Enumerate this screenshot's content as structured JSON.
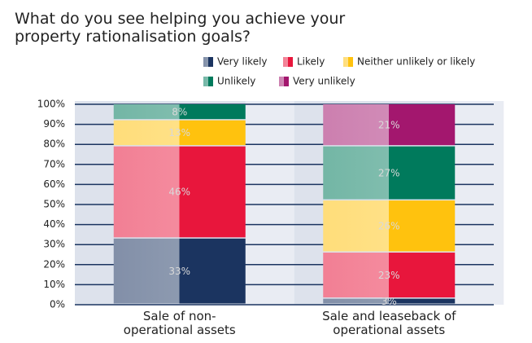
{
  "chart_data": {
    "type": "stacked_bar",
    "title": "What do you see helping you achieve your property rationalisation goals?",
    "categories": [
      "Sale of non-operational assets",
      "Sale and leaseback of operational assets"
    ],
    "series": [
      {
        "name": "Very likely",
        "color": "#1b3460",
        "values": [
          33,
          3
        ],
        "value_labels": [
          "33%",
          "3%"
        ]
      },
      {
        "name": "Likely",
        "color": "#e8163c",
        "values": [
          46,
          23
        ],
        "value_labels": [
          "46%",
          "23%"
        ]
      },
      {
        "name": "Neither unlikely or likely",
        "color": "#ffc20e",
        "values": [
          13,
          26
        ],
        "value_labels": [
          "13%",
          "26%"
        ]
      },
      {
        "name": "Unlikely",
        "color": "#007a5c",
        "values": [
          8,
          27
        ],
        "value_labels": [
          "8%",
          "27%"
        ]
      },
      {
        "name": "Very unlikely",
        "color": "#a3176e",
        "values": [
          0,
          21
        ],
        "value_labels": [
          null,
          "21%"
        ]
      }
    ],
    "ylim": [
      0,
      100
    ],
    "yticks": [
      {
        "value": 0,
        "label": "0%"
      },
      {
        "value": 10,
        "label": "10%"
      },
      {
        "value": 20,
        "label": "20%"
      },
      {
        "value": 30,
        "label": "30%"
      },
      {
        "value": 40,
        "label": "40%"
      },
      {
        "value": 50,
        "label": "50%"
      },
      {
        "value": 60,
        "label": "60%"
      },
      {
        "value": 70,
        "label": "70%"
      },
      {
        "value": 80,
        "label": "80%"
      },
      {
        "value": 90,
        "label": "90%"
      },
      {
        "value": 100,
        "label": "100%"
      }
    ],
    "grid": true,
    "legend": "top-right"
  }
}
